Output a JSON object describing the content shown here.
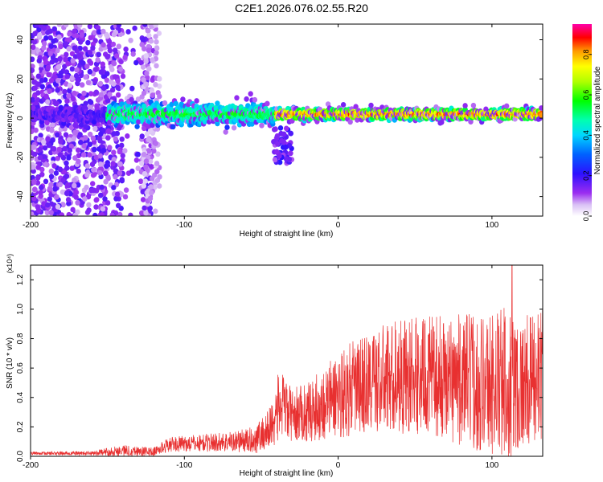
{
  "title": "C2E1.2026.076.02.55.R20",
  "chart_data": [
    {
      "type": "heatmap",
      "xlabel": "Height of straight line (km)",
      "ylabel": "Frequency (Hz)",
      "xlim": [
        -200,
        133
      ],
      "ylim": [
        -50,
        48
      ],
      "xticks": [
        "-200",
        "-100",
        "0",
        "100"
      ],
      "yticks": [
        "-40",
        "-20",
        "0",
        "20",
        "40"
      ],
      "colorbar": {
        "label": "Normalized spectral amplitude",
        "range": [
          0.0,
          0.95
        ],
        "ticks": [
          "0.0",
          "0.2",
          "0.4",
          "0.6",
          "0.8"
        ]
      },
      "features": {
        "noise_region_km": [
          -200,
          -125
        ],
        "band_center_hz": 2,
        "peak_region_km": [
          -40,
          133
        ]
      }
    },
    {
      "type": "line",
      "xlabel": "Height of straight line (km)",
      "ylabel": "SNR (10 * v/v)",
      "yscale_label": "(x10⁴)",
      "xlim": [
        -200,
        133
      ],
      "ylim": [
        0,
        1.3
      ],
      "xticks": [
        "-200",
        "-100",
        "0",
        "100"
      ],
      "yticks": [
        "0.0",
        "0.2",
        "0.4",
        "0.6",
        "0.8",
        "1.0",
        "1.2"
      ],
      "series": [
        {
          "name": "SNR",
          "color": "#e83030",
          "envelope_x": [
            -200,
            -160,
            -140,
            -120,
            -110,
            -90,
            -70,
            -55,
            -45,
            -38,
            -30,
            -20,
            -10,
            0,
            20,
            40,
            60,
            80,
            100,
            110,
            120,
            133
          ],
          "envelope_mid": [
            0.02,
            0.02,
            0.04,
            0.03,
            0.08,
            0.09,
            0.1,
            0.11,
            0.18,
            0.35,
            0.28,
            0.3,
            0.35,
            0.42,
            0.5,
            0.55,
            0.55,
            0.52,
            0.5,
            0.48,
            0.5,
            0.55
          ],
          "envelope_spread": [
            0.01,
            0.015,
            0.04,
            0.03,
            0.05,
            0.06,
            0.07,
            0.09,
            0.15,
            0.25,
            0.18,
            0.2,
            0.25,
            0.3,
            0.35,
            0.4,
            0.4,
            0.45,
            0.5,
            0.55,
            0.45,
            0.45
          ],
          "peak_x": 113,
          "peak_value": 1.32
        }
      ]
    }
  ]
}
